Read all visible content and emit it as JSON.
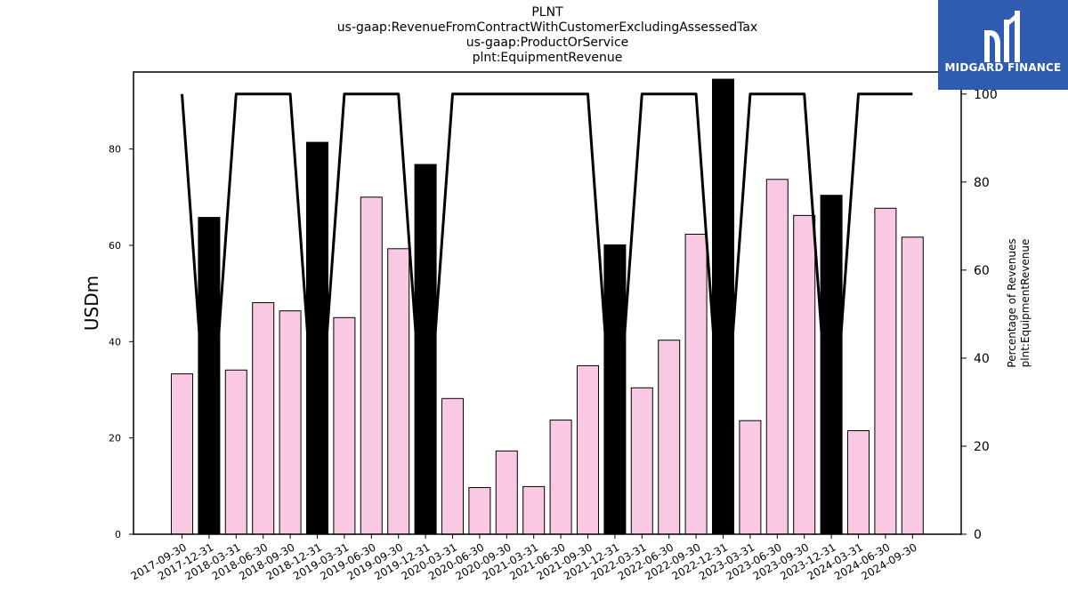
{
  "title_lines": [
    "PLNT",
    "us-gaap:RevenueFromContractWithCustomerExcludingAssessedTax",
    "us-gaap:ProductOrService",
    "plnt:EquipmentRevenue"
  ],
  "logo": {
    "text": "MIDGARD FINANCE",
    "icon": "midgard-logo-icon",
    "bg_color": "#2f5bb0"
  },
  "chart_data": {
    "type": "bar",
    "ylabel": "USDm",
    "y2label_lines": [
      "Percentage of Revenues",
      "plnt:EquipmentRevenue"
    ],
    "ylim": [
      0,
      96
    ],
    "y2lim": [
      0,
      105
    ],
    "yticks": [
      0,
      20,
      40,
      60,
      80
    ],
    "y2ticks": [
      0,
      20,
      40,
      60,
      80,
      100
    ],
    "grid": false,
    "categories": [
      "2017-09-30",
      "2017-12-31",
      "2018-03-31",
      "2018-06-30",
      "2018-09-30",
      "2018-12-31",
      "2019-03-31",
      "2019-06-30",
      "2019-09-30",
      "2019-12-31",
      "2020-03-31",
      "2020-06-30",
      "2020-09-30",
      "2021-03-31",
      "2021-06-30",
      "2021-09-30",
      "2021-12-31",
      "2022-03-31",
      "2022-06-30",
      "2022-09-30",
      "2022-12-31",
      "2023-03-31",
      "2023-06-30",
      "2023-09-30",
      "2023-12-31",
      "2024-03-31",
      "2024-06-30",
      "2024-09-30"
    ],
    "values": [
      33.3,
      65.8,
      34.1,
      48.1,
      46.4,
      81.4,
      45.0,
      70.0,
      59.3,
      76.8,
      28.2,
      9.7,
      17.3,
      9.9,
      23.7,
      35.0,
      60.1,
      30.4,
      40.3,
      62.3,
      94.5,
      23.6,
      73.7,
      66.2,
      70.4,
      21.5,
      67.7,
      61.7
    ],
    "annual": [
      false,
      true,
      false,
      false,
      false,
      true,
      false,
      false,
      false,
      true,
      false,
      false,
      false,
      false,
      false,
      false,
      true,
      false,
      false,
      false,
      true,
      false,
      false,
      false,
      true,
      false,
      false,
      false
    ],
    "percent_values": [
      100,
      15,
      100,
      100,
      100,
      15,
      100,
      100,
      100,
      15,
      100,
      100,
      100,
      100,
      100,
      100,
      15,
      100,
      100,
      100,
      15,
      100,
      100,
      100,
      15,
      100,
      100,
      100
    ],
    "colors": {
      "quarter_bar": "#f9c9e4",
      "annual_bar": "#000000",
      "bar_edge": "#000000",
      "line": "#000000"
    }
  }
}
